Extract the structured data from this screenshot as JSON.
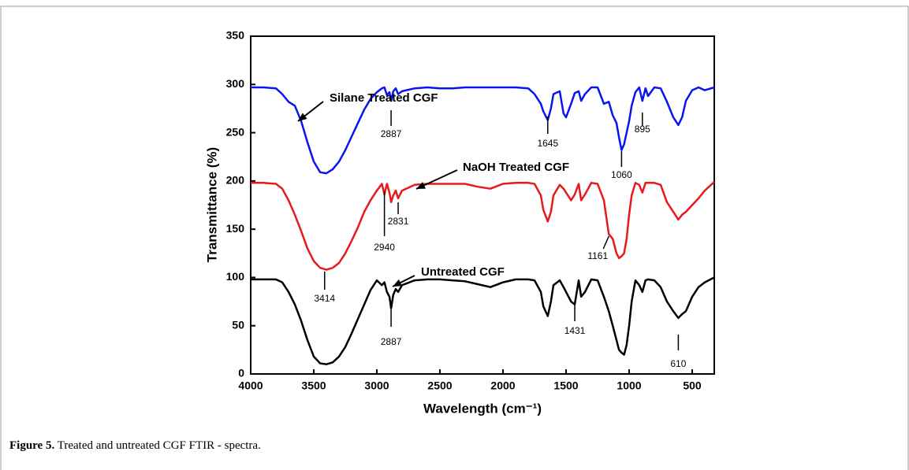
{
  "chart_data": {
    "type": "line",
    "xlabel": "Wavelength (cm⁻¹)",
    "ylabel": "Transmittance (%)",
    "xlim": [
      4000,
      325
    ],
    "xticks": [
      4000,
      3500,
      3000,
      2500,
      2000,
      1500,
      1000,
      500
    ],
    "ylim": [
      0,
      350
    ],
    "yticks": [
      0,
      50,
      100,
      150,
      200,
      250,
      300,
      350
    ],
    "x": [
      4000,
      3900,
      3800,
      3750,
      3700,
      3650,
      3600,
      3550,
      3500,
      3450,
      3400,
      3350,
      3300,
      3250,
      3200,
      3150,
      3100,
      3050,
      3000,
      2960,
      2940,
      2920,
      2900,
      2887,
      2870,
      2850,
      2831,
      2800,
      2700,
      2600,
      2500,
      2400,
      2300,
      2200,
      2100,
      2000,
      1900,
      1800,
      1750,
      1700,
      1680,
      1645,
      1620,
      1600,
      1550,
      1520,
      1500,
      1460,
      1431,
      1400,
      1380,
      1350,
      1300,
      1250,
      1200,
      1161,
      1130,
      1100,
      1080,
      1060,
      1040,
      1020,
      1000,
      980,
      950,
      920,
      895,
      870,
      850,
      800,
      750,
      700,
      650,
      610,
      580,
      550,
      500,
      450,
      400,
      325
    ],
    "series": [
      {
        "name": "Silane Treated CGF",
        "color": "#0a14f0",
        "values": [
          297,
          297,
          296,
          290,
          282,
          278,
          262,
          240,
          220,
          209,
          208,
          212,
          220,
          232,
          246,
          260,
          274,
          285,
          292,
          296,
          297,
          289,
          292,
          283,
          293,
          296,
          290,
          293,
          296,
          297,
          296,
          296,
          297,
          297,
          297,
          297,
          297,
          296,
          290,
          280,
          272,
          263,
          275,
          290,
          293,
          270,
          266,
          280,
          291,
          293,
          283,
          290,
          297,
          297,
          280,
          282,
          268,
          260,
          245,
          232,
          238,
          250,
          262,
          278,
          292,
          297,
          283,
          296,
          288,
          297,
          296,
          282,
          266,
          258,
          266,
          283,
          294,
          297,
          294,
          297
        ]
      },
      {
        "name": "NaOH Treated CGF",
        "color": "#e8191c",
        "values": [
          198,
          198,
          197,
          192,
          180,
          165,
          148,
          130,
          117,
          110,
          108,
          110,
          115,
          125,
          138,
          152,
          168,
          180,
          190,
          197,
          186,
          197,
          188,
          178,
          185,
          190,
          182,
          190,
          196,
          197,
          197,
          197,
          197,
          194,
          192,
          197,
          198,
          198,
          197,
          185,
          170,
          158,
          168,
          185,
          196,
          192,
          188,
          180,
          186,
          197,
          180,
          186,
          198,
          197,
          180,
          145,
          140,
          125,
          120,
          122,
          125,
          140,
          165,
          185,
          198,
          196,
          188,
          198,
          198,
          198,
          196,
          178,
          168,
          160,
          165,
          168,
          175,
          182,
          190,
          199
        ]
      },
      {
        "name": "Untreated CGF",
        "color": "#000000",
        "values": [
          98,
          98,
          98,
          95,
          85,
          72,
          55,
          35,
          18,
          11,
          10,
          12,
          18,
          28,
          42,
          57,
          72,
          87,
          97,
          92,
          95,
          85,
          80,
          68,
          82,
          88,
          85,
          92,
          97,
          98,
          98,
          97,
          96,
          93,
          90,
          95,
          98,
          98,
          97,
          85,
          70,
          60,
          75,
          92,
          97,
          90,
          85,
          75,
          72,
          97,
          80,
          85,
          98,
          97,
          80,
          65,
          50,
          35,
          25,
          22,
          20,
          30,
          50,
          75,
          97,
          92,
          85,
          97,
          98,
          97,
          90,
          75,
          65,
          58,
          62,
          65,
          80,
          90,
          95,
          100
        ]
      }
    ],
    "peaks": [
      2887,
      1645,
      895,
      1060,
      2940,
      2831,
      1161,
      3414,
      2887,
      1431,
      610
    ]
  },
  "caption": {
    "label": "Figure 5.",
    "text": "Treated and untreated CGF FTIR - spectra."
  }
}
